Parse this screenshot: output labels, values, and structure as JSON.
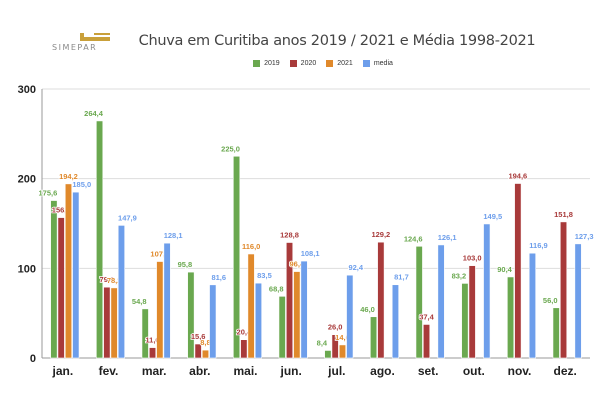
{
  "logo": {
    "text": "SIMEPAR"
  },
  "chart_data": {
    "type": "bar",
    "title": "Chuva em Curitiba anos 2019 / 2021 e Média 1998-2021",
    "xlabel": "",
    "ylabel": "",
    "ylim": [
      0,
      300
    ],
    "yticks": [
      0,
      100,
      200,
      300
    ],
    "grid": true,
    "legend_position": "top-center",
    "categories": [
      "jan.",
      "fev.",
      "mar.",
      "abr.",
      "mai.",
      "jun.",
      "jul.",
      "ago.",
      "set.",
      "out.",
      "nov.",
      "dez."
    ],
    "series": [
      {
        "name": "2019",
        "color": "#6aa84f",
        "values": [
          175.6,
          264.4,
          54.8,
          95.8,
          225.0,
          68.8,
          8.4,
          46.0,
          124.6,
          83.2,
          90.4,
          56.0
        ],
        "labels": [
          "175,6",
          "264,4",
          "54,8",
          "95,8",
          "225,0",
          "68,8",
          "8,4",
          "46,0",
          "124,6",
          "83,2",
          "90,4",
          "56,0"
        ]
      },
      {
        "name": "2020",
        "color": "#a83a3a",
        "values": [
          156.6,
          79.0,
          11.6,
          15.6,
          20.4,
          128.8,
          26.0,
          129.2,
          37.4,
          103.0,
          194.6,
          151.8
        ],
        "labels": [
          "156,6",
          "79,0",
          "11,6",
          "15,6",
          "20,4",
          "128,8",
          "26,0",
          "129,2",
          "37,4",
          "103,0",
          "194,6",
          "151,8"
        ]
      },
      {
        "name": "2021",
        "color": "#e0892b",
        "values": [
          194.2,
          78.2,
          107.6,
          8.8,
          116.0,
          96.4,
          14.6,
          null,
          null,
          null,
          null,
          null
        ],
        "labels": [
          "194,2",
          "78,2",
          "107,6",
          "8,8",
          "116,0",
          "96,4",
          "14,6",
          null,
          null,
          null,
          null,
          null
        ]
      },
      {
        "name": "media",
        "color": "#6d9eeb",
        "values": [
          185.0,
          147.9,
          128.1,
          81.6,
          83.5,
          108.1,
          92.4,
          81.7,
          126.1,
          149.5,
          116.9,
          127.3
        ],
        "labels": [
          "185,0",
          "147,9",
          "128,1",
          "81,6",
          "83,5",
          "108,1",
          "92,4",
          "81,7",
          "126,1",
          "149,5",
          "116,9",
          "127,3"
        ]
      }
    ]
  }
}
